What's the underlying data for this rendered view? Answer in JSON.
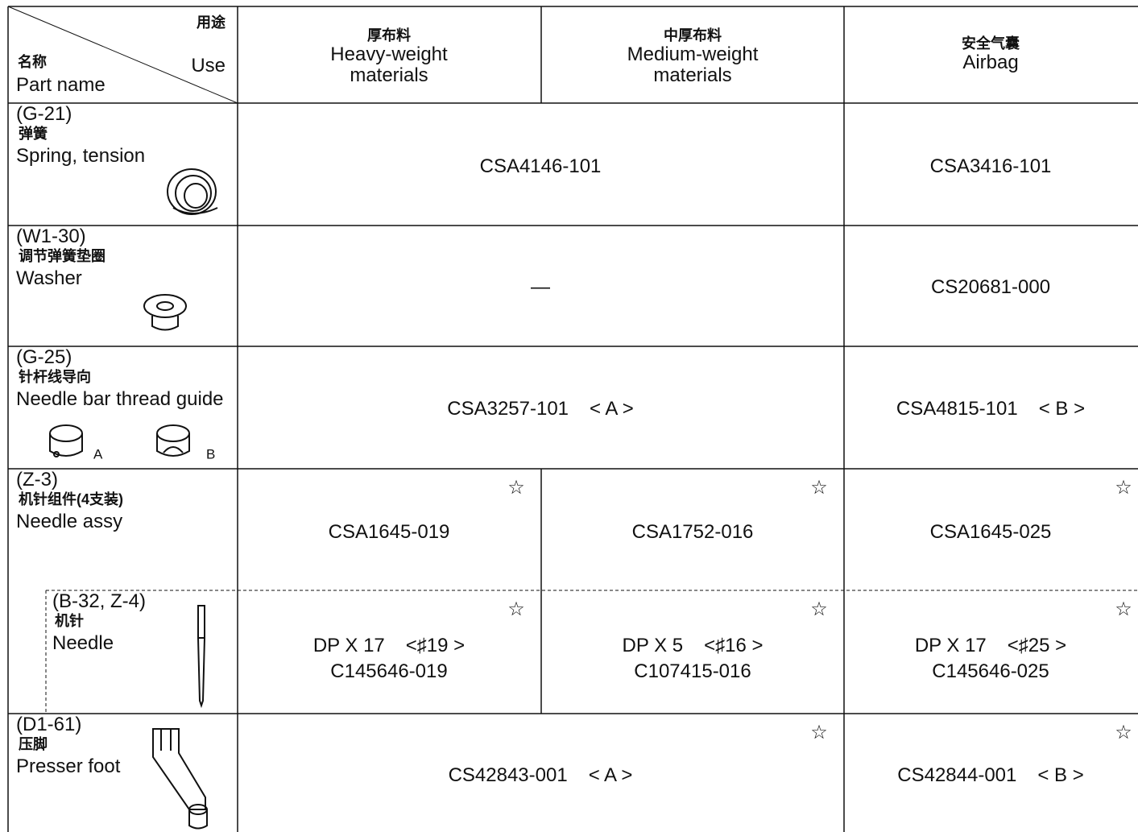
{
  "header": {
    "use_zh": "用途",
    "use_en": "Use",
    "name_zh": "名称",
    "name_en": "Part name"
  },
  "columns": [
    {
      "zh": "厚布料",
      "en": [
        "Heavy-weight",
        "materials"
      ]
    },
    {
      "zh": "中厚布料",
      "en": [
        "Medium-weight",
        "materials"
      ]
    },
    {
      "zh": "安全气囊",
      "en": [
        "Airbag"
      ]
    }
  ],
  "rows": [
    {
      "code": "(G-21)",
      "zh": "弹簧",
      "en": "Spring, tension",
      "cells": [
        {
          "text": "CSA4146-101"
        },
        {
          "text": "CSA3416-101"
        }
      ]
    },
    {
      "code": "(W1-30)",
      "zh": "调节弹簧垫圈",
      "en": "Washer",
      "cells": [
        {
          "text": "—"
        },
        {
          "text": "CS20681-000"
        }
      ]
    },
    {
      "code": "(G-25)",
      "zh": "针杆线导向",
      "en": "Needle bar thread guide",
      "figure_labels": [
        "A",
        "B"
      ],
      "cells": [
        {
          "text": "CSA3257-101",
          "tag": "< A >"
        },
        {
          "text": "CSA4815-101",
          "tag": "< B >"
        }
      ]
    },
    {
      "code": "(Z-3)",
      "zh": "机针组件(4支装)",
      "en": "Needle assy",
      "cells": [
        {
          "text": "CSA1645-019",
          "mark": "☆"
        },
        {
          "text": "CSA1752-016",
          "mark": "☆"
        },
        {
          "text": "CSA1645-025",
          "mark": "☆"
        }
      ]
    },
    {
      "code": "(B-32, Z-4)",
      "zh": "机针",
      "en": "Needle",
      "cells": [
        {
          "type": "DP X 17",
          "size": "<♯19 >",
          "text": "C145646-019",
          "mark": "☆"
        },
        {
          "type": "DP X 5",
          "size": "<♯16 >",
          "text": "C107415-016",
          "mark": "☆"
        },
        {
          "type": "DP X 17",
          "size": "<♯25 >",
          "text": "C145646-025",
          "mark": "☆"
        }
      ]
    },
    {
      "code": "(D1-61)",
      "zh": "压脚",
      "en": "Presser foot",
      "cells": [
        {
          "text": "CS42843-001",
          "tag": "< A >",
          "mark": "☆"
        },
        {
          "text": "CS42844-001",
          "tag": "< B >",
          "mark": "☆"
        }
      ]
    }
  ]
}
